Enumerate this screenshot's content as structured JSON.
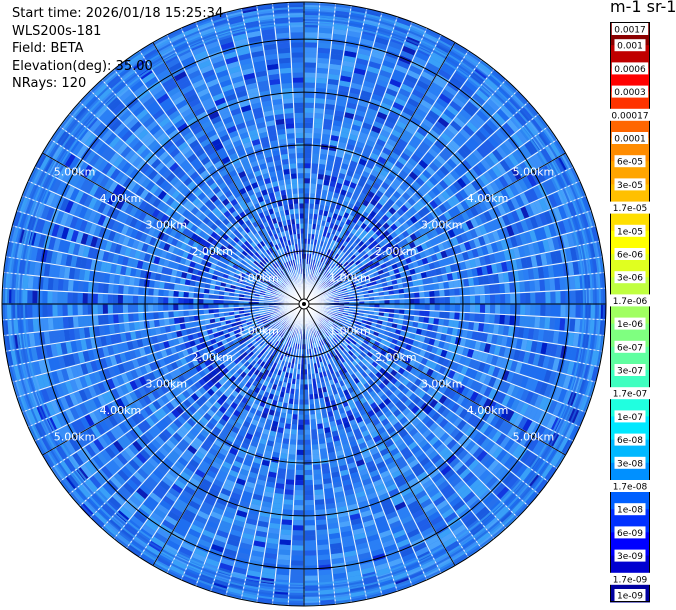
{
  "info": {
    "start_time": "Start time: 2026/01/18 15:25:34",
    "instrument": "WLS200s-181",
    "field": "Field: BETA",
    "elevation": "Elevation(deg): 35.00",
    "nrays": "NRays: 120"
  },
  "colorbar": {
    "title": "m-1 sr-1",
    "ticks": [
      "0.0017",
      "0.001",
      "0.0006",
      "0.0003",
      "0.00017",
      "0.0001",
      "6e-05",
      "3e-05",
      "1.7e-05",
      "1e-05",
      "6e-06",
      "3e-06",
      "1.7e-06",
      "1e-06",
      "6e-07",
      "3e-07",
      "1.7e-07",
      "1e-07",
      "6e-08",
      "3e-08",
      "1.7e-08",
      "1e-08",
      "6e-09",
      "3e-09",
      "1.7e-09",
      "1e-09"
    ],
    "colors": [
      "#8b0000",
      "#c00000",
      "#ff0000",
      "#ff3300",
      "#ff6600",
      "#ff8c00",
      "#ffa500",
      "#ffc000",
      "#ffdf00",
      "#ffff00",
      "#e0ff20",
      "#c0ff40",
      "#a0ff60",
      "#7fff80",
      "#60ffa0",
      "#40ffc0",
      "#20ffe0",
      "#00e8ff",
      "#00b8ff",
      "#0090ff",
      "#0060ff",
      "#0030ff",
      "#0000ff",
      "#0000d0",
      "#0000a0",
      "#000070"
    ]
  },
  "chart_data": {
    "type": "heatmap",
    "projection": "polar-ppi",
    "field": "BETA",
    "unit": "m-1 sr-1",
    "elevation_deg": 35.0,
    "n_rays": 120,
    "range_rings": [
      {
        "label": "1.00km",
        "km": 1.0
      },
      {
        "label": "2.00km",
        "km": 2.0
      },
      {
        "label": "3.00km",
        "km": 3.0
      },
      {
        "label": "4.00km",
        "km": 4.0
      },
      {
        "label": "5.00km",
        "km": 5.0
      }
    ],
    "max_range_km": 5.7,
    "ring_label_angles_deg": [
      -60,
      60,
      120,
      240
    ],
    "dominant_value_range": [
      "1.7e-08",
      "6e-08"
    ],
    "grid": true
  }
}
